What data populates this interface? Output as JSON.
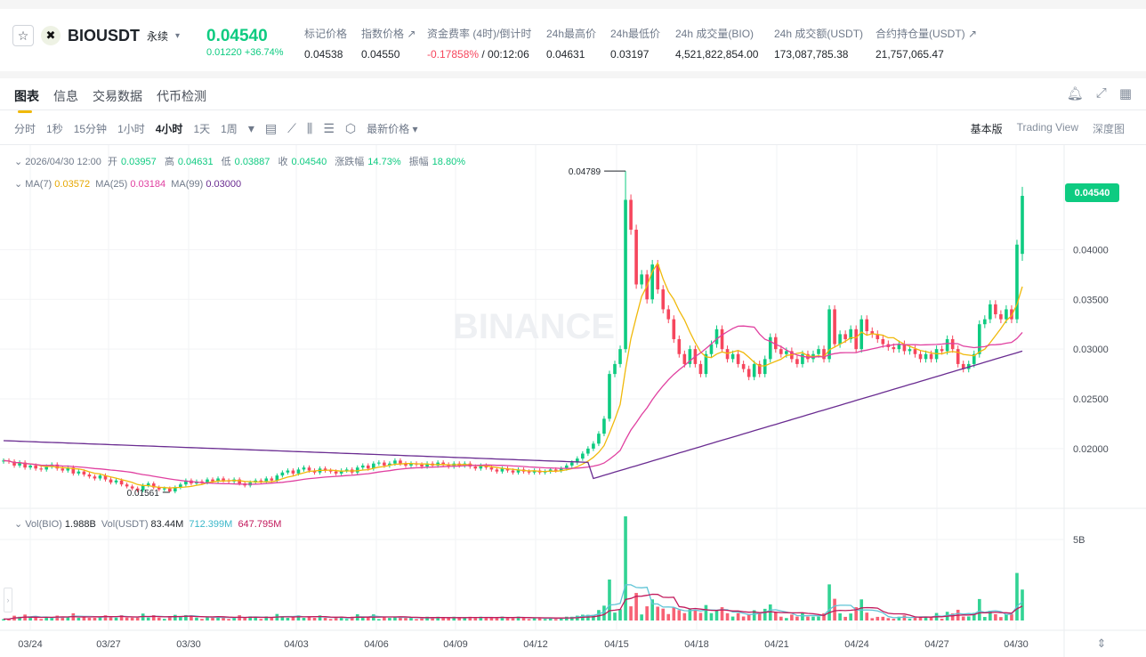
{
  "header": {
    "star_icon": "star-icon",
    "symbol": "BIOUSDT",
    "contract_type": "永续",
    "last_price": "0.04540",
    "change": "0.01220 +36.74%",
    "stats": [
      {
        "label": "标记价格",
        "value": "0.04538"
      },
      {
        "label": "指数价格 ↗",
        "value": "0.04550"
      },
      {
        "label": "资金费率 (4时)/倒计时",
        "value_red": "-0.17858%",
        "value": " / 00:12:06"
      },
      {
        "label": "24h最高价",
        "value": "0.04631"
      },
      {
        "label": "24h最低价",
        "value": "0.03197"
      },
      {
        "label": "24h 成交量(BIO)",
        "value": "4,521,822,854.00"
      },
      {
        "label": "24h 成交额(USDT)",
        "value": "173,087,785.38"
      },
      {
        "label": "合约持仓量(USDT) ↗",
        "value": "21,757,065.47"
      }
    ]
  },
  "tabs": [
    "图表",
    "信息",
    "交易数据",
    "代币检测"
  ],
  "intervals": [
    "分时",
    "1秒",
    "15分钟",
    "1小时",
    "4小时",
    "1天",
    "1周"
  ],
  "selected_interval": "4小时",
  "price_type": "最新价格 ▾",
  "views": [
    "基本版",
    "Trading View",
    "深度图"
  ],
  "ohlc": {
    "time": "2026/04/30 12:00",
    "open_label": "开",
    "open": "0.03957",
    "high_label": "高",
    "high": "0.04631",
    "low_label": "低",
    "low": "0.03887",
    "close_label": "收",
    "close": "0.04540",
    "change_label": "涨跌幅",
    "change": "14.73%",
    "amp_label": "振幅",
    "amp": "18.80%"
  },
  "ma": {
    "ma7_label": "MA(7)",
    "ma7": "0.03572",
    "ma25_label": "MA(25)",
    "ma25": "0.03184",
    "ma99_label": "MA(99)",
    "ma99": "0.03000"
  },
  "volume": {
    "label": "Vol(BIO)",
    "bio": "1.988B",
    "usdt_label": "Vol(USDT)",
    "usdt": "83.44M",
    "ma1": "712.399M",
    "ma2": "647.795M",
    "axis_label": "5B"
  },
  "price_tag": "0.04540",
  "chart_data": {
    "type": "candlestick",
    "y_ticks": [
      "0.04000",
      "0.03500",
      "0.03000",
      "0.02500",
      "0.02000"
    ],
    "x_ticks": [
      "03/24",
      "03/27",
      "03/30",
      "04/03",
      "04/06",
      "04/09",
      "04/12",
      "04/15",
      "04/18",
      "04/21",
      "04/24",
      "04/27",
      "04/30"
    ],
    "ylim": [
      0.014,
      0.0505
    ],
    "high_marker": "0.04789",
    "low_marker": "0.01561",
    "colors": {
      "up": "#0ecb81",
      "down": "#f6465d",
      "ma7": "#f0b90b",
      "ma25": "#e040a0",
      "ma99": "#6a2c91",
      "vol_ma1": "#5fc4d6",
      "vol_ma2": "#c2185b"
    },
    "closes": [
      0.0188,
      0.0187,
      0.0183,
      0.0186,
      0.0181,
      0.0183,
      0.018,
      0.0179,
      0.0182,
      0.0184,
      0.018,
      0.0178,
      0.0181,
      0.0175,
      0.0177,
      0.0174,
      0.0172,
      0.017,
      0.0173,
      0.0169,
      0.0166,
      0.0168,
      0.0164,
      0.0162,
      0.016,
      0.0158,
      0.0163,
      0.0165,
      0.0161,
      0.0159,
      0.016,
      0.0157,
      0.0161,
      0.0164,
      0.0168,
      0.0165,
      0.0167,
      0.0166,
      0.0169,
      0.0167,
      0.017,
      0.0168,
      0.0167,
      0.0169,
      0.0165,
      0.0163,
      0.0166,
      0.0168,
      0.0167,
      0.017,
      0.0168,
      0.0173,
      0.0176,
      0.0178,
      0.0175,
      0.0179,
      0.0181,
      0.0178,
      0.0176,
      0.018,
      0.0178,
      0.0177,
      0.0175,
      0.0178,
      0.0179,
      0.0176,
      0.0181,
      0.0183,
      0.018,
      0.0185,
      0.0186,
      0.0183,
      0.0185,
      0.0188,
      0.0185,
      0.0183,
      0.0185,
      0.0184,
      0.0182,
      0.0185,
      0.0183,
      0.0186,
      0.0184,
      0.0182,
      0.0185,
      0.0183,
      0.0185,
      0.0182,
      0.018,
      0.0183,
      0.0181,
      0.0179,
      0.0177,
      0.018,
      0.0178,
      0.0176,
      0.0179,
      0.0177,
      0.0176,
      0.0178,
      0.0176,
      0.0177,
      0.0179,
      0.0178,
      0.018,
      0.0183,
      0.0186,
      0.019,
      0.0195,
      0.02,
      0.0205,
      0.0215,
      0.023,
      0.0275,
      0.0285,
      0.03,
      0.045,
      0.042,
      0.0365,
      0.0375,
      0.035,
      0.0385,
      0.036,
      0.034,
      0.033,
      0.031,
      0.0295,
      0.0285,
      0.03,
      0.0285,
      0.0275,
      0.0295,
      0.0305,
      0.032,
      0.03,
      0.029,
      0.0295,
      0.0285,
      0.028,
      0.0272,
      0.0285,
      0.0275,
      0.029,
      0.0312,
      0.03,
      0.0295,
      0.0298,
      0.029,
      0.0285,
      0.0295,
      0.029,
      0.0295,
      0.03,
      0.029,
      0.034,
      0.0305,
      0.0315,
      0.031,
      0.032,
      0.03,
      0.033,
      0.0318,
      0.0315,
      0.031,
      0.0305,
      0.0302,
      0.03,
      0.0305,
      0.0298,
      0.03,
      0.0295,
      0.029,
      0.0295,
      0.029,
      0.03,
      0.0298,
      0.031,
      0.03,
      0.0285,
      0.028,
      0.0285,
      0.0295,
      0.0325,
      0.033,
      0.0345,
      0.0335,
      0.033,
      0.034,
      0.033,
      0.0405,
      0.0454
    ]
  }
}
